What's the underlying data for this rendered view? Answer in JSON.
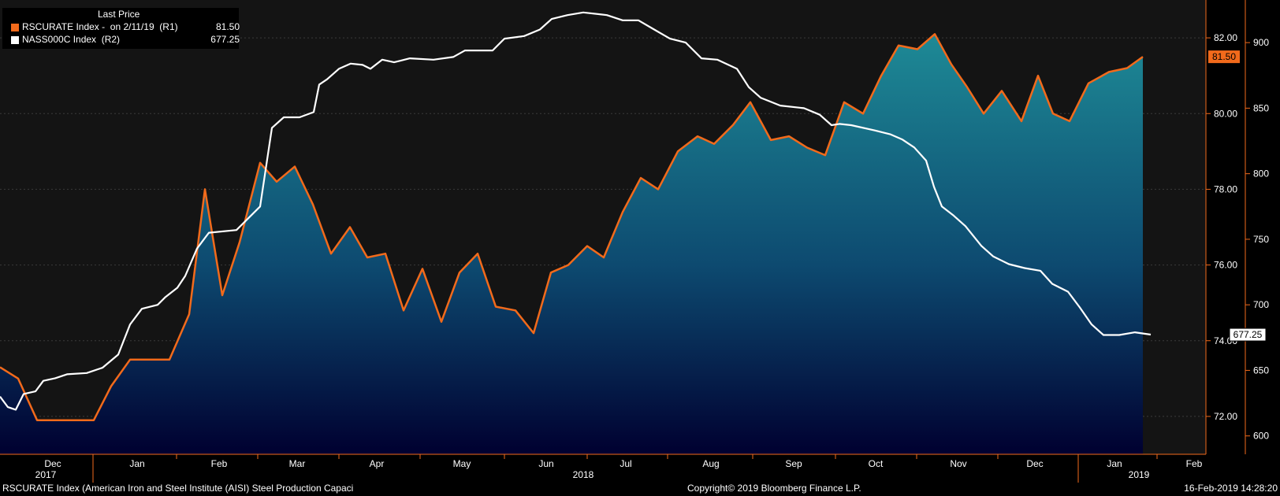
{
  "colors": {
    "background": "#000000",
    "plot_bg": "#141414",
    "orange": "#f26a1b",
    "white_line": "#ffffff",
    "area_top": "#1e8a96",
    "area_bottom": "#000030"
  },
  "legend": {
    "header": "Last Price",
    "rows": [
      {
        "label": "RSCURATE Index -  on 2/11/19  (R1)",
        "value": "81.50",
        "color": "#f26a1b"
      },
      {
        "label": "NASS000C Index  (R2)",
        "value": "677.25",
        "color": "#ffffff"
      }
    ]
  },
  "footer": {
    "left": "RSCURATE Index (American Iron and Steel Institute (AISI) Steel Production Capaci",
    "center": "Copyright© 2019 Bloomberg Finance L.P.",
    "right": "16-Feb-2019 14:28:20"
  },
  "chart_data": {
    "type": "area",
    "months": [
      "Dec",
      "Jan",
      "Feb",
      "Mar",
      "Apr",
      "May",
      "Jun",
      "Jul",
      "Aug",
      "Sep",
      "Oct",
      "Nov",
      "Dec",
      "Jan",
      "Feb"
    ],
    "years": [
      "2017",
      "2018",
      "2019"
    ],
    "axes": {
      "r1": {
        "min": 71.0,
        "max": 83.0,
        "ticks": [
          "72.00",
          "74.00",
          "76.00",
          "78.00",
          "80.00",
          "82.00"
        ]
      },
      "r2": {
        "min": 586.0,
        "max": 932.5,
        "ticks": [
          "600",
          "650",
          "700",
          "750",
          "800",
          "850",
          "900"
        ]
      }
    },
    "last_labels": {
      "r1": "81.50",
      "r2": "677.25"
    },
    "series": [
      {
        "name": "RSCURATE Index",
        "axis": "r1",
        "color": "#f26a1b",
        "fill": true,
        "points": [
          [
            0,
            73.3
          ],
          [
            23,
            73.0
          ],
          [
            47,
            71.9
          ],
          [
            119,
            71.9
          ],
          [
            141,
            72.8
          ],
          [
            165,
            73.5
          ],
          [
            215,
            73.5
          ],
          [
            240,
            74.7
          ],
          [
            260,
            78.0
          ],
          [
            282,
            75.2
          ],
          [
            304,
            76.6
          ],
          [
            330,
            78.7
          ],
          [
            351,
            78.2
          ],
          [
            374,
            78.6
          ],
          [
            397,
            77.6
          ],
          [
            420,
            76.3
          ],
          [
            444,
            77.0
          ],
          [
            466,
            76.2
          ],
          [
            489,
            76.3
          ],
          [
            512,
            74.8
          ],
          [
            536,
            75.9
          ],
          [
            560,
            74.5
          ],
          [
            583,
            75.8
          ],
          [
            606,
            76.3
          ],
          [
            629,
            74.9
          ],
          [
            654,
            74.8
          ],
          [
            677,
            74.2
          ],
          [
            699,
            75.8
          ],
          [
            721,
            76.0
          ],
          [
            745,
            76.5
          ],
          [
            766,
            76.2
          ],
          [
            790,
            77.4
          ],
          [
            813,
            78.3
          ],
          [
            835,
            78.0
          ],
          [
            860,
            79.0
          ],
          [
            885,
            79.4
          ],
          [
            906,
            79.2
          ],
          [
            930,
            79.7
          ],
          [
            952,
            80.3
          ],
          [
            978,
            79.3
          ],
          [
            1001,
            79.4
          ],
          [
            1024,
            79.1
          ],
          [
            1047,
            78.9
          ],
          [
            1071,
            80.3
          ],
          [
            1095,
            80.0
          ],
          [
            1118,
            81.0
          ],
          [
            1140,
            81.8
          ],
          [
            1164,
            81.7
          ],
          [
            1186,
            82.1
          ],
          [
            1207,
            81.3
          ],
          [
            1227,
            80.7
          ],
          [
            1248,
            80.0
          ],
          [
            1271,
            80.6
          ],
          [
            1296,
            79.8
          ],
          [
            1317,
            81.0
          ],
          [
            1336,
            80.0
          ],
          [
            1357,
            79.8
          ],
          [
            1381,
            80.8
          ],
          [
            1407,
            81.1
          ],
          [
            1430,
            81.2
          ],
          [
            1450,
            81.5
          ]
        ]
      },
      {
        "name": "NASS000C Index",
        "axis": "r2",
        "color": "#ffffff",
        "fill": false,
        "points": [
          [
            0,
            630
          ],
          [
            10,
            622
          ],
          [
            20,
            620
          ],
          [
            30,
            632
          ],
          [
            45,
            634
          ],
          [
            55,
            642
          ],
          [
            70,
            644
          ],
          [
            85,
            647
          ],
          [
            110,
            648
          ],
          [
            130,
            652
          ],
          [
            150,
            662
          ],
          [
            165,
            685
          ],
          [
            180,
            697
          ],
          [
            200,
            700
          ],
          [
            210,
            706
          ],
          [
            225,
            713
          ],
          [
            235,
            722
          ],
          [
            250,
            743
          ],
          [
            265,
            755
          ],
          [
            300,
            757
          ],
          [
            330,
            775
          ],
          [
            345,
            835
          ],
          [
            360,
            843
          ],
          [
            380,
            843
          ],
          [
            398,
            847
          ],
          [
            405,
            868
          ],
          [
            415,
            872
          ],
          [
            430,
            880
          ],
          [
            445,
            884
          ],
          [
            460,
            883
          ],
          [
            470,
            880
          ],
          [
            485,
            887
          ],
          [
            500,
            885
          ],
          [
            520,
            888
          ],
          [
            550,
            887
          ],
          [
            575,
            889
          ],
          [
            590,
            894
          ],
          [
            625,
            894
          ],
          [
            640,
            903
          ],
          [
            665,
            905
          ],
          [
            685,
            910
          ],
          [
            700,
            918
          ],
          [
            720,
            921
          ],
          [
            740,
            923
          ],
          [
            770,
            921
          ],
          [
            790,
            917
          ],
          [
            810,
            917
          ],
          [
            830,
            910
          ],
          [
            850,
            903
          ],
          [
            870,
            900
          ],
          [
            890,
            888
          ],
          [
            910,
            887
          ],
          [
            935,
            880
          ],
          [
            950,
            866
          ],
          [
            965,
            858
          ],
          [
            990,
            852
          ],
          [
            1020,
            850
          ],
          [
            1040,
            845
          ],
          [
            1055,
            837
          ],
          [
            1065,
            838
          ],
          [
            1080,
            837
          ],
          [
            1110,
            833
          ],
          [
            1130,
            830
          ],
          [
            1145,
            826
          ],
          [
            1160,
            820
          ],
          [
            1175,
            810
          ],
          [
            1185,
            790
          ],
          [
            1195,
            775
          ],
          [
            1210,
            768
          ],
          [
            1225,
            760
          ],
          [
            1245,
            745
          ],
          [
            1260,
            737
          ],
          [
            1280,
            731
          ],
          [
            1300,
            728
          ],
          [
            1320,
            726
          ],
          [
            1335,
            716
          ],
          [
            1355,
            710
          ],
          [
            1370,
            698
          ],
          [
            1385,
            685
          ],
          [
            1400,
            677
          ],
          [
            1420,
            677
          ],
          [
            1440,
            679
          ],
          [
            1460,
            677.25
          ]
        ]
      }
    ]
  }
}
